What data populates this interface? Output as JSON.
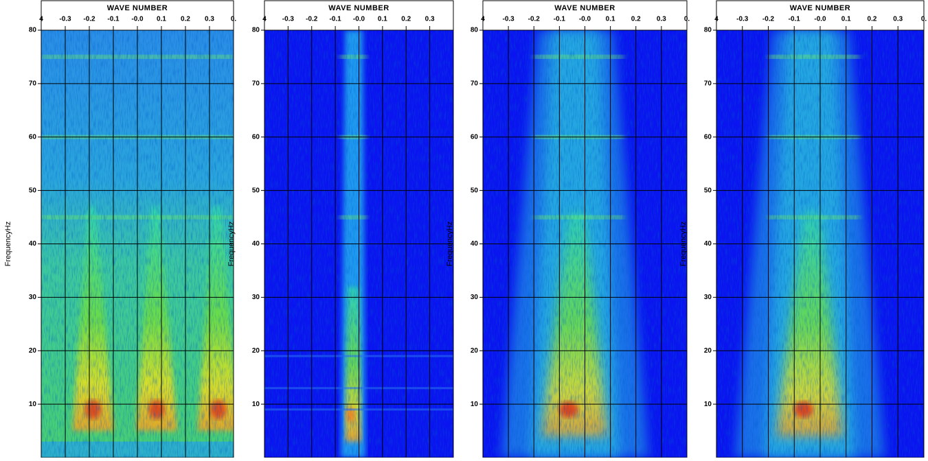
{
  "chart_data": [
    {
      "type": "heatmap",
      "xlabel": "WAVE NUMBER",
      "ylabel": "FrequencyHz",
      "xlim": [
        -0.4,
        0.4
      ],
      "ylim": [
        0,
        80
      ],
      "xticks": [
        {
          "value": -0.4,
          "label": "4"
        },
        -0.3,
        -0.2,
        -0.1,
        {
          "value": 0,
          "label": "-0.0"
        },
        0.1,
        0.2,
        0.3,
        {
          "value": 0.4,
          "label": "0."
        }
      ],
      "yticks": [
        10,
        20,
        30,
        40,
        50,
        60,
        70,
        80
      ],
      "grid": true
    },
    {
      "type": "heatmap",
      "xlabel": "WAVE NUMBER",
      "ylabel": "FrequencyHz",
      "xlim": [
        -0.4,
        0.4
      ],
      "ylim": [
        0,
        80
      ],
      "xticks": [
        {
          "value": -0.4,
          "label": "4"
        },
        -0.3,
        -0.2,
        -0.1,
        {
          "value": 0,
          "label": "-0.0"
        },
        0.1,
        0.2,
        0.3
      ],
      "yticks": [
        10,
        20,
        30,
        40,
        50,
        60,
        70,
        80
      ],
      "grid": true
    },
    {
      "type": "heatmap",
      "xlabel": "WAVE NUMBER",
      "ylabel": "FrequencyHz",
      "xlim": [
        -0.4,
        0.4
      ],
      "ylim": [
        0,
        80
      ],
      "xticks": [
        {
          "value": -0.4,
          "label": "4"
        },
        -0.3,
        -0.2,
        -0.1,
        {
          "value": 0,
          "label": "-0.0"
        },
        0.1,
        0.2,
        0.3,
        {
          "value": 0.4,
          "label": "0."
        }
      ],
      "yticks": [
        10,
        20,
        30,
        40,
        50,
        60,
        70,
        80
      ],
      "grid": true
    },
    {
      "type": "heatmap",
      "xlabel": "WAVE NUMBER",
      "ylabel": "FrequencyHz",
      "xlim": [
        -0.4,
        0.4
      ],
      "ylim": [
        0,
        80
      ],
      "xticks": [
        {
          "value": -0.4,
          "label": "4"
        },
        -0.3,
        -0.2,
        -0.1,
        {
          "value": 0,
          "label": "-0.0"
        },
        0.1,
        0.2,
        0.3,
        {
          "value": 0.4,
          "label": "0."
        }
      ],
      "yticks": [
        10,
        20,
        30,
        40,
        50,
        60,
        70,
        80
      ],
      "grid": true
    }
  ]
}
